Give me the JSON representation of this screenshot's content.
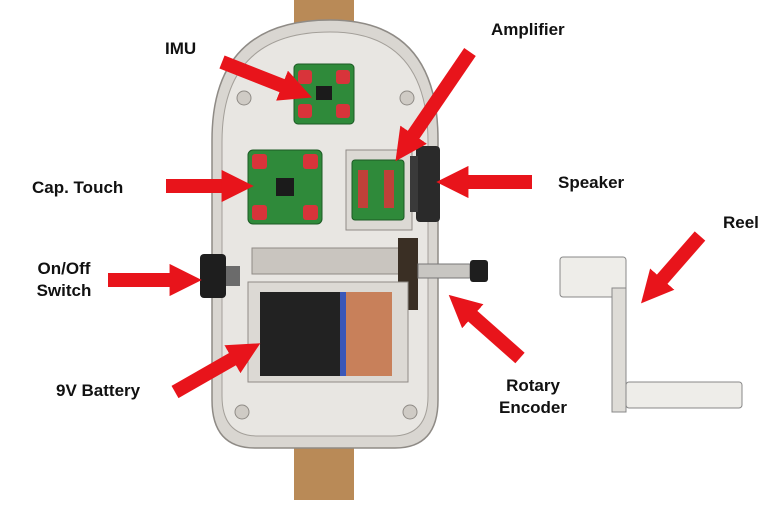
{
  "labels": {
    "imu": "IMU",
    "amplifier": "Amplifier",
    "cap_touch": "Cap. Touch",
    "speaker": "Speaker",
    "reel": "Reel",
    "onoff_line1": "On/Off",
    "onoff_line2": "Switch",
    "battery": "9V Battery",
    "rotary_line1": "Rotary",
    "rotary_line2": "Encoder"
  },
  "colors": {
    "arrow": "#e8141b",
    "housing": "#d9d6d1",
    "housing_inner": "#e8e6e2",
    "wood": "#b98a57",
    "pcb": "#2f8a3a",
    "pad": "#d8343a",
    "battery_black": "#222222",
    "battery_copper": "#c8805a",
    "battery_blue": "#3a57b8"
  },
  "icons": {
    "arrow": "red-arrow-icon"
  }
}
